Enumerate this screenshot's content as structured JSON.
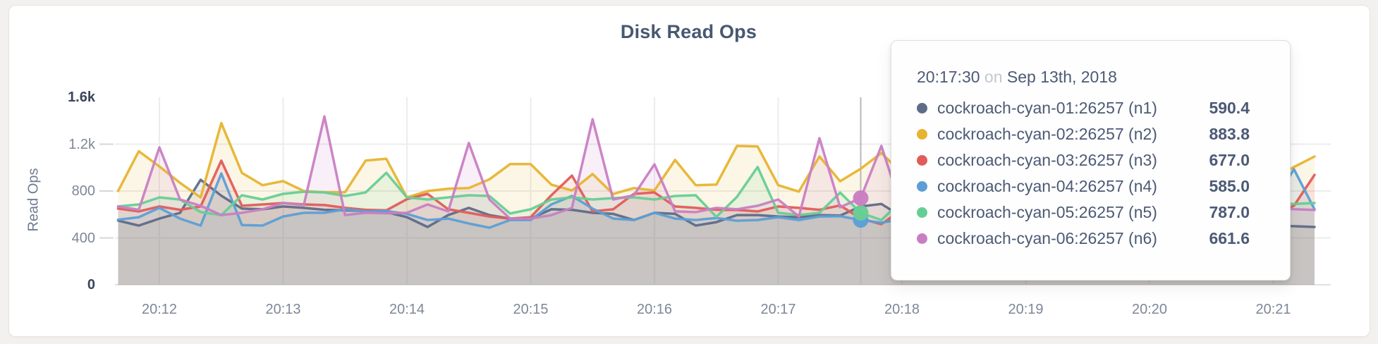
{
  "page": {
    "background": "#F2F1EF",
    "card_background": "#FFFFFF"
  },
  "chart_data": {
    "type": "line",
    "title": "Disk Read Ops",
    "ylabel": "Read Ops",
    "xlabel": "",
    "grid": true,
    "legend_position": "none",
    "x_start": "20:11:40",
    "x_step_seconds": 10,
    "x_ticks": [
      "20:12",
      "20:13",
      "20:14",
      "20:15",
      "20:16",
      "20:17",
      "20:18",
      "20:19",
      "20:20",
      "20:21"
    ],
    "y_ticks": [
      {
        "label": "0",
        "value": 0,
        "emphasis": true
      },
      {
        "label": "400",
        "value": 400,
        "emphasis": false
      },
      {
        "label": "800",
        "value": 800,
        "emphasis": false
      },
      {
        "label": "1.2k",
        "value": 1200,
        "emphasis": false
      },
      {
        "label": "1.6k",
        "value": 1600,
        "emphasis": true
      }
    ],
    "ylim": [
      0,
      1600
    ],
    "fill_opacity": 0.12,
    "series": [
      {
        "id": "n1",
        "name": "cockroach-cyan-01:26257 (n1)",
        "color": "#5F6C87",
        "values": [
          548,
          505,
          565,
          614,
          896,
          760,
          650,
          644,
          668,
          656,
          640,
          635,
          630,
          620,
          577,
          493,
          595,
          656,
          595,
          565,
          565,
          644,
          640,
          614,
          605,
          553,
          614,
          605,
          505,
          535,
          595,
          595,
          583,
          577,
          595,
          590.4,
          668,
          690,
          580,
          560,
          600,
          545,
          590,
          565,
          610,
          555,
          585,
          570,
          600,
          560,
          590,
          545,
          575,
          555,
          520,
          510,
          505,
          500,
          493
        ]
      },
      {
        "id": "n2",
        "name": "cockroach-cyan-02:26257 (n2)",
        "color": "#E7B42F",
        "values": [
          800,
          1140,
          1010,
          870,
          745,
          1380,
          955,
          850,
          885,
          800,
          790,
          790,
          1060,
          1075,
          745,
          800,
          820,
          825,
          900,
          1030,
          1030,
          855,
          805,
          945,
          775,
          825,
          805,
          1065,
          850,
          855,
          1185,
          1180,
          850,
          795,
          1095,
          883.8,
          990,
          1125,
          950,
          1050,
          870,
          980,
          1120,
          900,
          820,
          1000,
          880,
          1060,
          940,
          860,
          1010,
          890,
          960,
          1040,
          870,
          920,
          900,
          1005,
          1095
        ]
      },
      {
        "id": "n3",
        "name": "cockroach-cyan-03:26257 (n3)",
        "color": "#E05C5B",
        "values": [
          650,
          626,
          668,
          640,
          668,
          1059,
          674,
          686,
          698,
          686,
          680,
          656,
          640,
          635,
          730,
          776,
          644,
          614,
          583,
          565,
          577,
          764,
          932,
          626,
          644,
          776,
          788,
          668,
          656,
          640,
          638,
          626,
          668,
          656,
          640,
          677,
          565,
          517,
          640,
          700,
          660,
          720,
          630,
          680,
          650,
          700,
          640,
          690,
          720,
          650,
          670,
          700,
          630,
          660,
          640,
          600,
          600,
          674,
          938
        ]
      },
      {
        "id": "n4",
        "name": "cockroach-cyan-04:26257 (n4)",
        "color": "#5C9FD6",
        "values": [
          555,
          577,
          656,
          565,
          505,
          950,
          510,
          505,
          583,
          614,
          614,
          644,
          626,
          630,
          605,
          553,
          565,
          523,
          487,
          553,
          553,
          686,
          758,
          650,
          565,
          553,
          614,
          565,
          553,
          570,
          547,
          553,
          577,
          553,
          583,
          585,
          553,
          530,
          560,
          590,
          540,
          610,
          570,
          550,
          600,
          560,
          580,
          540,
          620,
          570,
          550,
          590,
          560,
          600,
          640,
          680,
          700,
          986,
          644
        ]
      },
      {
        "id": "n5",
        "name": "cockroach-cyan-05:26257 (n5)",
        "color": "#67CE93",
        "values": [
          668,
          686,
          746,
          728,
          620,
          595,
          764,
          728,
          776,
          794,
          788,
          758,
          788,
          956,
          746,
          728,
          746,
          764,
          758,
          608,
          644,
          728,
          746,
          728,
          740,
          746,
          728,
          758,
          764,
          580,
          750,
          1005,
          614,
          595,
          614,
          787,
          614,
          553,
          720,
          760,
          700,
          780,
          740,
          710,
          770,
          730,
          750,
          720,
          780,
          700,
          740,
          760,
          710,
          730,
          700,
          690,
          690,
          690,
          698
        ]
      },
      {
        "id": "n6",
        "name": "cockroach-cyan-06:26257 (n6)",
        "color": "#C97EC3",
        "values": [
          668,
          640,
          1173,
          728,
          674,
          595,
          614,
          644,
          698,
          680,
          1437,
          595,
          614,
          610,
          614,
          686,
          626,
          1210,
          728,
          565,
          565,
          595,
          656,
          1413,
          728,
          764,
          1028,
          626,
          620,
          656,
          644,
          674,
          728,
          583,
          1251,
          661.6,
          740,
          1185,
          640,
          700,
          660,
          620,
          680,
          720,
          640,
          600,
          660,
          700,
          620,
          680,
          640,
          720,
          660,
          600,
          630,
          650,
          660,
          645,
          638
        ]
      }
    ]
  },
  "hover": {
    "line_index": 36,
    "dot_series": [
      "n4",
      "n5",
      "n6"
    ],
    "guideline_color": "#B9B9B9"
  },
  "tooltip": {
    "time": "20:17:30",
    "conjunction": "on",
    "date": "Sep 13th, 2018",
    "rows": [
      {
        "series": "n1",
        "value": "590.4"
      },
      {
        "series": "n2",
        "value": "883.8"
      },
      {
        "series": "n3",
        "value": "677.0"
      },
      {
        "series": "n4",
        "value": "585.0"
      },
      {
        "series": "n5",
        "value": "787.0"
      },
      {
        "series": "n6",
        "value": "661.6"
      }
    ]
  },
  "colors": {
    "grid": "#ECECEC",
    "baseline": "#E2E1DF",
    "axis_tick": "#D3D7DC",
    "title_text": "#475872",
    "tick_text": "#7E8798",
    "tick_text_emphasis": "#39455A"
  }
}
